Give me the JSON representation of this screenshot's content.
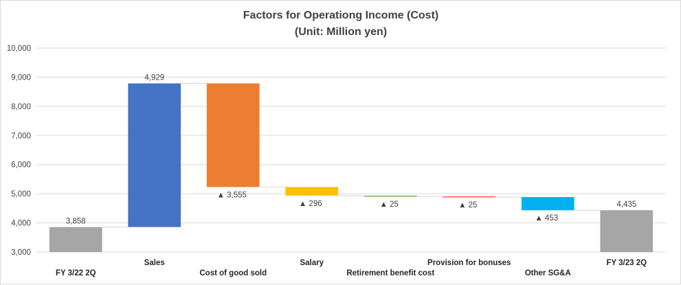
{
  "chart_data": {
    "type": "waterfall",
    "title_line1": "Factors for Operationg Income (Cost)",
    "title_line2": "(Unit: Million yen)",
    "ylim": [
      3000,
      10000
    ],
    "yticks": [
      "3,000",
      "4,000",
      "5,000",
      "6,000",
      "7,000",
      "8,000",
      "9,000",
      "10,000"
    ],
    "grid": true,
    "legend": "none",
    "negative_marker": "▲",
    "categories": [
      "FY 3/22 2Q",
      "Sales",
      "Cost of good sold",
      "Salary",
      "Retirement benefit cost",
      "Provision for bonuses",
      "Other SG&A",
      "FY 3/23 2Q"
    ],
    "bars": [
      {
        "category": "FY 3/22 2Q",
        "kind": "total",
        "value": 3858,
        "label": "3,858",
        "color": "#a6a6a6"
      },
      {
        "category": "Sales",
        "kind": "increase",
        "value": 4929,
        "label": "4,929",
        "color": "#4472c4"
      },
      {
        "category": "Cost of good sold",
        "kind": "decrease",
        "value": 3555,
        "label": "3,555",
        "color": "#ed7d31"
      },
      {
        "category": "Salary",
        "kind": "decrease",
        "value": 296,
        "label": "296",
        "color": "#ffc000"
      },
      {
        "category": "Retirement benefit cost",
        "kind": "decrease",
        "value": 25,
        "label": "25",
        "color": "#70ad47"
      },
      {
        "category": "Provision for bonuses",
        "kind": "decrease",
        "value": 25,
        "label": "25",
        "color": "#ff5050"
      },
      {
        "category": "Other SG&A",
        "kind": "decrease",
        "value": 453,
        "label": "453",
        "color": "#00b0f0"
      },
      {
        "category": "FY 3/23 2Q",
        "kind": "total",
        "value": 4435,
        "label": "4,435",
        "color": "#a6a6a6"
      }
    ],
    "colors": {
      "grid": "#d9d9d9",
      "connector": "#d9d9d9",
      "text": "#404040"
    }
  }
}
